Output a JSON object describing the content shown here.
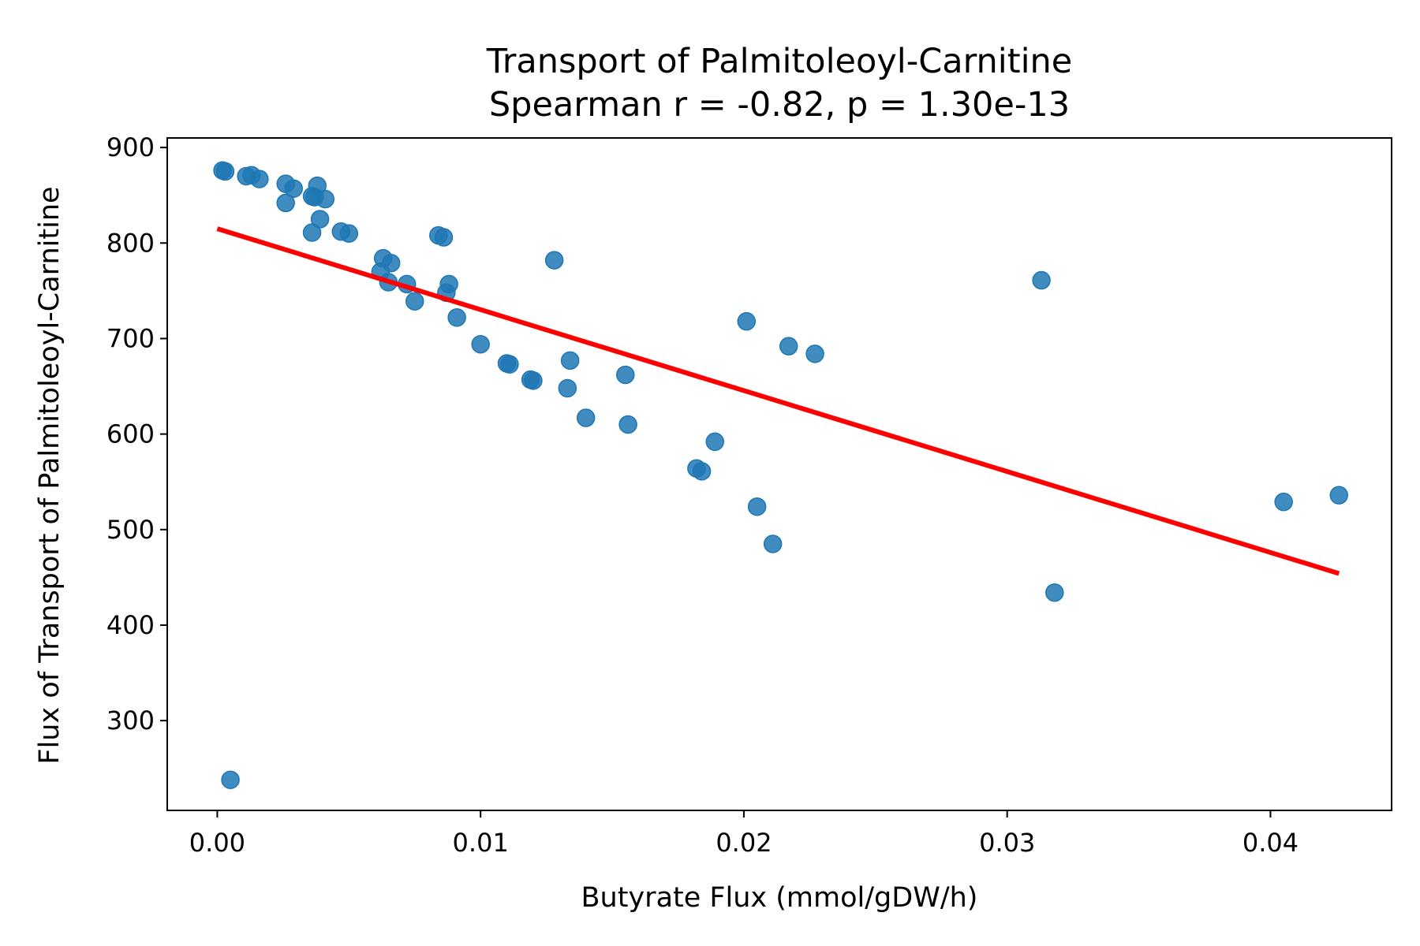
{
  "chart_data": {
    "type": "scatter",
    "title": "Transport of Palmitoleoyl-Carnitine",
    "subtitle": "Spearman r = -0.82, p = 1.30e-13",
    "xlabel": "Butyrate Flux (mmol/gDW/h)",
    "ylabel": "Flux of Transport of Palmitoleoyl-Carnitine",
    "xlim": [
      -0.0019,
      0.0446
    ],
    "ylim": [
      206,
      910
    ],
    "xticks": [
      0.0,
      0.01,
      0.02,
      0.03,
      0.04
    ],
    "xtick_labels": [
      "0.00",
      "0.01",
      "0.02",
      "0.03",
      "0.04"
    ],
    "yticks": [
      300,
      400,
      500,
      600,
      700,
      800,
      900
    ],
    "ytick_labels": [
      "300",
      "400",
      "500",
      "600",
      "700",
      "800",
      "900"
    ],
    "grid": false,
    "colors": {
      "points": "#1f77b4",
      "trend_line": "#ff0000",
      "axes": "#000000"
    },
    "points": [
      {
        "x": 0.0002,
        "y": 876
      },
      {
        "x": 0.0003,
        "y": 875
      },
      {
        "x": 0.0011,
        "y": 870
      },
      {
        "x": 0.0013,
        "y": 871
      },
      {
        "x": 0.0016,
        "y": 867
      },
      {
        "x": 0.0026,
        "y": 862
      },
      {
        "x": 0.0029,
        "y": 857
      },
      {
        "x": 0.0026,
        "y": 842
      },
      {
        "x": 0.0036,
        "y": 849
      },
      {
        "x": 0.0038,
        "y": 860
      },
      {
        "x": 0.0041,
        "y": 846
      },
      {
        "x": 0.0037,
        "y": 848
      },
      {
        "x": 0.0039,
        "y": 825
      },
      {
        "x": 0.0036,
        "y": 811
      },
      {
        "x": 0.0047,
        "y": 812
      },
      {
        "x": 0.005,
        "y": 810
      },
      {
        "x": 0.0084,
        "y": 808
      },
      {
        "x": 0.0086,
        "y": 806
      },
      {
        "x": 0.0063,
        "y": 784
      },
      {
        "x": 0.0066,
        "y": 779
      },
      {
        "x": 0.0062,
        "y": 770
      },
      {
        "x": 0.0065,
        "y": 759
      },
      {
        "x": 0.0072,
        "y": 757
      },
      {
        "x": 0.0075,
        "y": 739
      },
      {
        "x": 0.0088,
        "y": 757
      },
      {
        "x": 0.0087,
        "y": 748
      },
      {
        "x": 0.0091,
        "y": 722
      },
      {
        "x": 0.0128,
        "y": 782
      },
      {
        "x": 0.01,
        "y": 694
      },
      {
        "x": 0.011,
        "y": 674
      },
      {
        "x": 0.0111,
        "y": 673
      },
      {
        "x": 0.012,
        "y": 656
      },
      {
        "x": 0.0119,
        "y": 657
      },
      {
        "x": 0.0134,
        "y": 677
      },
      {
        "x": 0.0133,
        "y": 648
      },
      {
        "x": 0.014,
        "y": 617
      },
      {
        "x": 0.0155,
        "y": 662
      },
      {
        "x": 0.0156,
        "y": 610
      },
      {
        "x": 0.0182,
        "y": 564
      },
      {
        "x": 0.0184,
        "y": 561
      },
      {
        "x": 0.0189,
        "y": 592
      },
      {
        "x": 0.0201,
        "y": 718
      },
      {
        "x": 0.0217,
        "y": 692
      },
      {
        "x": 0.0227,
        "y": 684
      },
      {
        "x": 0.0205,
        "y": 524
      },
      {
        "x": 0.0211,
        "y": 485
      },
      {
        "x": 0.0313,
        "y": 761
      },
      {
        "x": 0.0318,
        "y": 434
      },
      {
        "x": 0.0405,
        "y": 529
      },
      {
        "x": 0.0426,
        "y": 536
      },
      {
        "x": 0.0005,
        "y": 238
      }
    ],
    "trend_line": {
      "x": [
        0.0,
        0.0426
      ],
      "y": [
        815,
        454
      ]
    }
  }
}
